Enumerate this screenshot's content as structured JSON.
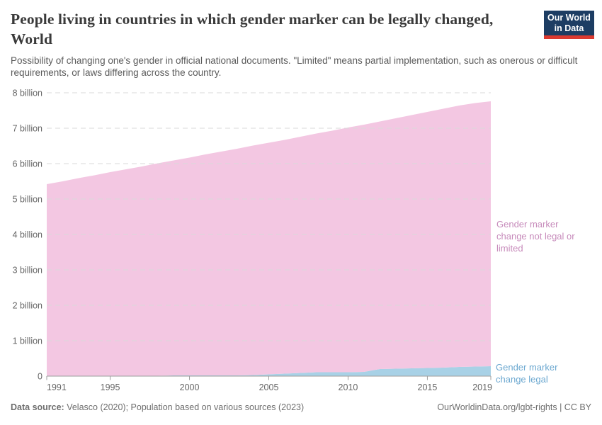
{
  "header": {
    "logo": {
      "line1": "Our World",
      "line2": "in Data",
      "bg_color": "#1d3d63",
      "accent_color": "#dc3a30"
    }
  },
  "chart_data": {
    "type": "area",
    "stacked": true,
    "title": "People living in countries in which gender marker can be legally changed, World",
    "subtitle": "Possibility of changing one's gender in official national documents. \"Limited\" means partial implementation, such as onerous or difficult requirements, or laws differing across the country.",
    "unit": "people",
    "grid": true,
    "legend_position": "right-inline",
    "xlabel": "",
    "ylabel": "",
    "ylim": [
      0,
      8
    ],
    "ylim_unit": "billion",
    "x": [
      1991,
      1992,
      1993,
      1994,
      1995,
      1996,
      1997,
      1998,
      1999,
      2000,
      2001,
      2002,
      2003,
      2004,
      2005,
      2006,
      2007,
      2008,
      2009,
      2010,
      2011,
      2012,
      2013,
      2014,
      2015,
      2016,
      2017,
      2018,
      2019
    ],
    "series": [
      {
        "id": "gender-marker-change-legal",
        "name": "Gender marker change legal",
        "color": "#a8d1e6",
        "label_color": "#6ca8d0",
        "values_unit": "billion",
        "values": [
          0.01,
          0.01,
          0.01,
          0.01,
          0.01,
          0.01,
          0.01,
          0.01,
          0.02,
          0.02,
          0.02,
          0.02,
          0.02,
          0.03,
          0.05,
          0.07,
          0.09,
          0.11,
          0.11,
          0.11,
          0.12,
          0.2,
          0.21,
          0.22,
          0.23,
          0.24,
          0.26,
          0.27,
          0.28
        ]
      },
      {
        "id": "gender-marker-change-not-legal-or-limited",
        "name": "Gender marker change not legal or limited",
        "color": "#f3c7e2",
        "label_color": "#c78bbb",
        "values_unit": "billion",
        "values": [
          5.41,
          5.49,
          5.58,
          5.66,
          5.75,
          5.83,
          5.91,
          6.0,
          6.07,
          6.15,
          6.24,
          6.32,
          6.4,
          6.48,
          6.54,
          6.6,
          6.67,
          6.74,
          6.82,
          6.91,
          6.98,
          6.99,
          7.07,
          7.15,
          7.23,
          7.31,
          7.38,
          7.44,
          7.48
        ]
      }
    ],
    "y_ticks": [
      {
        "value": 0,
        "label": "0"
      },
      {
        "value": 1,
        "label": "1 billion"
      },
      {
        "value": 2,
        "label": "2 billion"
      },
      {
        "value": 3,
        "label": "3 billion"
      },
      {
        "value": 4,
        "label": "4 billion"
      },
      {
        "value": 5,
        "label": "5 billion"
      },
      {
        "value": 6,
        "label": "6 billion"
      },
      {
        "value": 7,
        "label": "7 billion"
      },
      {
        "value": 8,
        "label": "8 billion"
      }
    ],
    "x_ticks": [
      {
        "value": 1991,
        "label": "1991"
      },
      {
        "value": 1995,
        "label": "1995"
      },
      {
        "value": 2000,
        "label": "2000"
      },
      {
        "value": 2005,
        "label": "2005"
      },
      {
        "value": 2010,
        "label": "2010"
      },
      {
        "value": 2015,
        "label": "2015"
      },
      {
        "value": 2019,
        "label": "2019"
      }
    ]
  },
  "footer": {
    "data_source_label": "Data source:",
    "data_source_text": " Velasco (2020); Population based on various sources (2023)",
    "credit": "OurWorldinData.org/lgbt-rights | CC BY"
  }
}
